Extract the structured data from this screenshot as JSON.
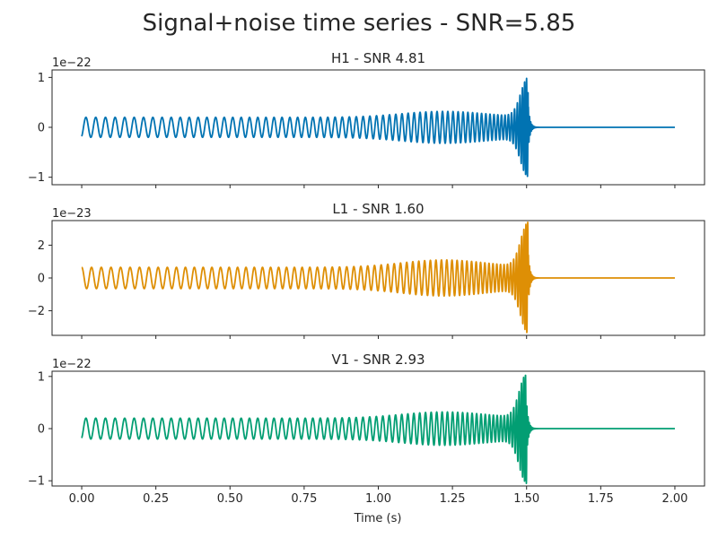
{
  "chart_data": {
    "type": "line",
    "title": "Signal+noise time series - SNR=5.85",
    "xlabel": "Time (s)",
    "xlim": [
      -0.1,
      2.1
    ],
    "xticks": [
      0.0,
      0.25,
      0.5,
      0.75,
      1.0,
      1.25,
      1.5,
      1.75,
      2.0
    ],
    "xtick_labels": [
      "0.00",
      "0.25",
      "0.50",
      "0.75",
      "1.00",
      "1.25",
      "1.50",
      "1.75",
      "2.00"
    ],
    "grid": false,
    "shared_x": true,
    "panels": [
      {
        "title": "H1 - SNR 4.81",
        "offset_text": "1e−22",
        "color": "#0173b2",
        "ylim": [
          -1.15,
          1.15
        ],
        "yticks": [
          -1,
          0,
          1
        ],
        "ytick_labels": [
          "−1",
          "0",
          "1"
        ],
        "waveform": {
          "t_start": 0.0,
          "t_merger": 1.505,
          "t_end": 2.0,
          "start_value": -0.18,
          "inspiral_amplitude": 0.2,
          "modulation_amplitude": 0.12,
          "peak_amplitude": 1.0
        }
      },
      {
        "title": "L1 - SNR 1.60",
        "offset_text": "1e−23",
        "color": "#de8f05",
        "ylim": [
          -3.5,
          3.5
        ],
        "yticks": [
          -2,
          0,
          2
        ],
        "ytick_labels": [
          "−2",
          "0",
          "2"
        ],
        "waveform": {
          "t_start": 0.0,
          "t_merger": 1.505,
          "t_end": 2.0,
          "start_value": 0.65,
          "inspiral_amplitude": 0.65,
          "modulation_amplitude": 0.45,
          "peak_amplitude": 3.4
        }
      },
      {
        "title": "V1 - SNR 2.93",
        "offset_text": "1e−22",
        "color": "#029e73",
        "ylim": [
          -1.1,
          1.1
        ],
        "yticks": [
          -1,
          0,
          1
        ],
        "ytick_labels": [
          "−1",
          "0",
          "1"
        ],
        "waveform": {
          "t_start": 0.0,
          "t_merger": 1.5,
          "t_end": 2.0,
          "start_value": -0.18,
          "inspiral_amplitude": 0.2,
          "modulation_amplitude": 0.12,
          "peak_amplitude": 1.05
        }
      }
    ]
  }
}
